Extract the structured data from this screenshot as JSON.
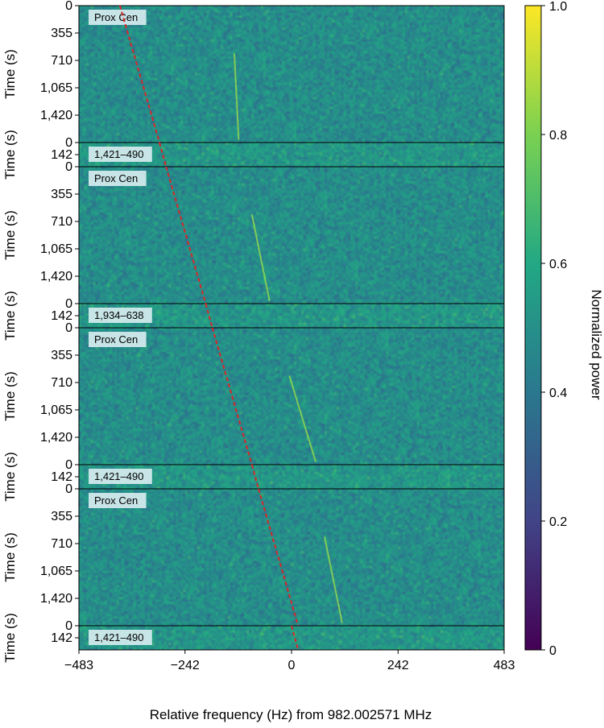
{
  "chart_data": {
    "type": "heatmap",
    "xlabel": "Relative frequency (Hz) from 982.002571 MHz",
    "ylabel": "Time (s)",
    "colorbar_label": "Normalized power",
    "xlim": [
      -483,
      483
    ],
    "x_ticks": [
      -483,
      -242,
      0,
      242,
      483
    ],
    "x_tick_labels": [
      "−483",
      "−242",
      "0",
      "242",
      "483"
    ],
    "colorbar_range": [
      0,
      1
    ],
    "colorbar_ticks": [
      0,
      0.2,
      0.4,
      0.6,
      0.8,
      1.0
    ],
    "colorbar_tick_labels": [
      "0",
      "0.2",
      "0.4",
      "0.6",
      "0.8",
      "1.0"
    ],
    "colormap": "viridis",
    "colormap_stops": [
      "#440154",
      "#414487",
      "#2a788e",
      "#22a884",
      "#7ad151",
      "#fde725"
    ],
    "drift_line_color": "#d62728",
    "panels": [
      {
        "label": "Prox Cen",
        "y_ticks": [
          0,
          355,
          710,
          1065,
          1420
        ],
        "y_tick_labels": [
          "0",
          "355",
          "710",
          "1,065",
          "1,420"
        ],
        "time_span": 1775,
        "drift_freq": [
          -390,
          -300
        ],
        "signal_freq": [
          -130,
          -120
        ]
      },
      {
        "label": "1,421–490",
        "y_ticks": [
          0,
          142
        ],
        "y_tick_labels": [
          "0",
          "142"
        ],
        "time_span": 284,
        "drift_freq": [
          -300,
          -285
        ]
      },
      {
        "label": "Prox Cen",
        "y_ticks": [
          0,
          355,
          710,
          1065,
          1420
        ],
        "y_tick_labels": [
          "0",
          "355",
          "710",
          "1,065",
          "1,420"
        ],
        "time_span": 1775,
        "drift_freq": [
          -285,
          -195
        ],
        "signal_freq": [
          -90,
          -50
        ]
      },
      {
        "label": "1,934–638",
        "y_ticks": [
          0,
          142
        ],
        "y_tick_labels": [
          "0",
          "142"
        ],
        "time_span": 284,
        "drift_freq": [
          -195,
          -180
        ]
      },
      {
        "label": "Prox Cen",
        "y_ticks": [
          0,
          355,
          710,
          1065,
          1420
        ],
        "y_tick_labels": [
          "0",
          "355",
          "710",
          "1,065",
          "1,420"
        ],
        "time_span": 1775,
        "drift_freq": [
          -180,
          -90
        ],
        "signal_freq": [
          -5,
          55
        ]
      },
      {
        "label": "1,421–490",
        "y_ticks": [
          0,
          142
        ],
        "y_tick_labels": [
          "0",
          "142"
        ],
        "time_span": 284,
        "drift_freq": [
          -90,
          -75
        ]
      },
      {
        "label": "Prox Cen",
        "y_ticks": [
          0,
          355,
          710,
          1065,
          1420
        ],
        "y_tick_labels": [
          "0",
          "355",
          "710",
          "1,065",
          "1,420"
        ],
        "time_span": 1775,
        "drift_freq": [
          -75,
          15
        ],
        "signal_freq": [
          75,
          115
        ]
      },
      {
        "label": "1,421–490",
        "y_ticks": [
          0,
          142
        ],
        "y_tick_labels": [
          "0",
          "142"
        ],
        "time_span": 284,
        "drift_freq": [
          0,
          15
        ]
      }
    ]
  }
}
